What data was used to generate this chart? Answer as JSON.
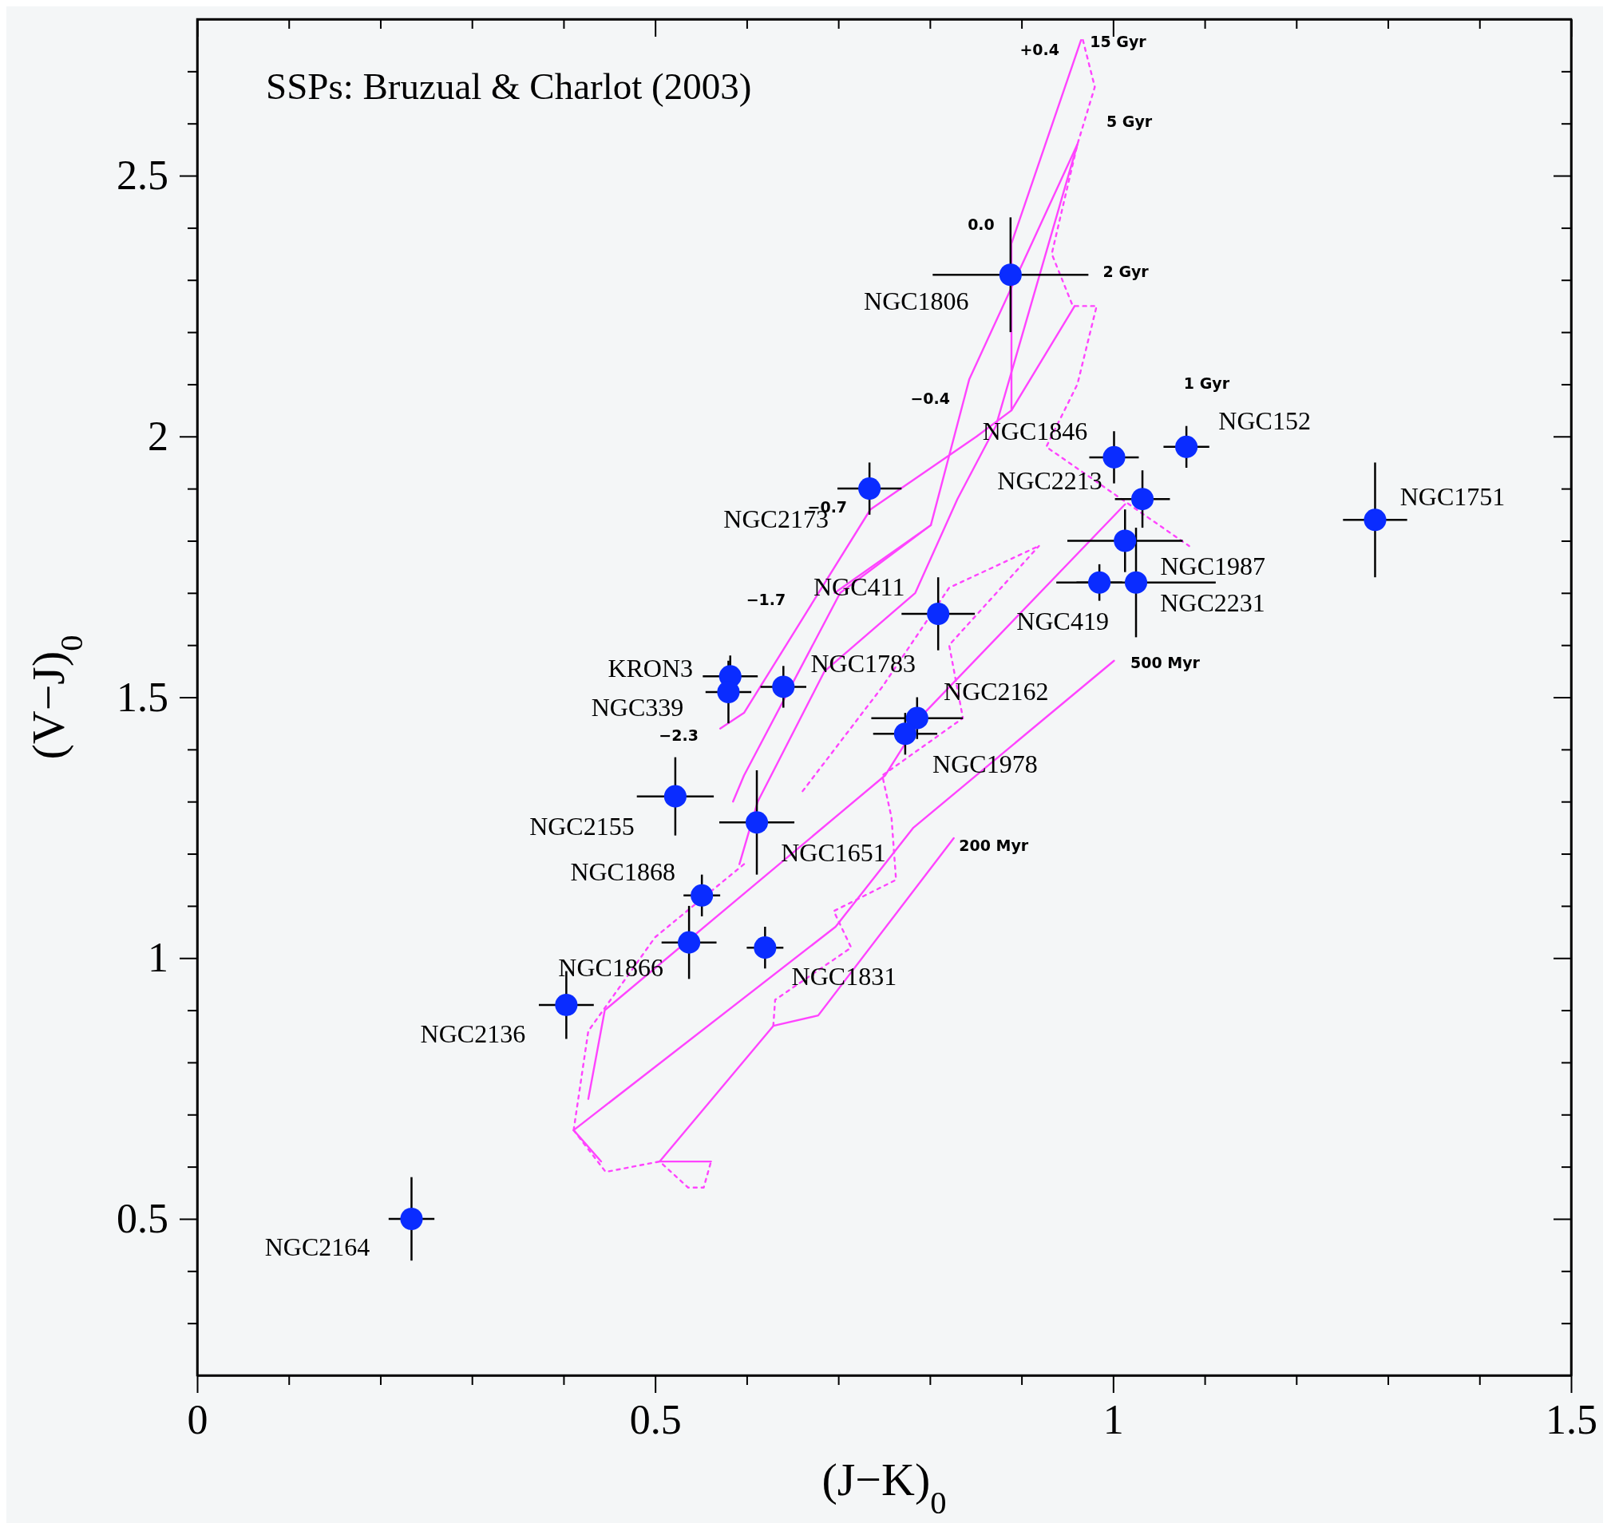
{
  "chart_data": {
    "type": "scatter",
    "title": "SSPs: Bruzual & Charlot (2003)",
    "xlabel": "(J−K)$_{0}$",
    "ylabel": "(V−J)$_{0}$",
    "xlim": [
      0,
      1.5
    ],
    "ylim": [
      0.2,
      2.8
    ],
    "xticks": [
      0,
      {
        "value": 0.1,
        "label": null
      },
      {
        "value": 0.2,
        "label": null
      },
      {
        "value": 0.3,
        "label": null
      },
      {
        "value": 0.4,
        "label": null
      },
      0.5,
      {
        "value": 0.6,
        "label": null
      },
      {
        "value": 0.7,
        "label": null
      },
      {
        "value": 0.8,
        "label": null
      },
      {
        "value": 0.9,
        "label": null
      },
      1,
      {
        "value": 1.1,
        "label": null
      },
      {
        "value": 1.2,
        "label": null
      },
      {
        "value": 1.3,
        "label": null
      },
      {
        "value": 1.4,
        "label": null
      },
      1.5
    ],
    "yticks": [
      {
        "value": 0.3,
        "label": null
      },
      {
        "value": 0.4,
        "label": null
      },
      0.5,
      {
        "value": 0.6,
        "label": null
      },
      {
        "value": 0.7,
        "label": null
      },
      {
        "value": 0.8,
        "label": null
      },
      {
        "value": 0.9,
        "label": null
      },
      1,
      {
        "value": 1.1,
        "label": null
      },
      {
        "value": 1.2,
        "label": null
      },
      {
        "value": 1.3,
        "label": null
      },
      {
        "value": 1.4,
        "label": null
      },
      1.5,
      {
        "value": 1.6,
        "label": null
      },
      {
        "value": 1.7,
        "label": null
      },
      {
        "value": 1.8,
        "label": null
      },
      {
        "value": 1.9,
        "label": null
      },
      2,
      {
        "value": 2.1,
        "label": null
      },
      {
        "value": 2.2,
        "label": null
      },
      {
        "value": 2.3,
        "label": null
      },
      {
        "value": 2.4,
        "label": null
      },
      2.5,
      {
        "value": 2.6,
        "label": null
      },
      {
        "value": 2.7,
        "label": null
      }
    ],
    "series": [
      {
        "color": "#0a2cff",
        "marker": "circle",
        "x": [
          0.888,
          1.001,
          1.08,
          1.286,
          1.032,
          1.013,
          1.025,
          0.985,
          0.734,
          0.809,
          0.64,
          0.582,
          0.58,
          0.786,
          0.773,
          0.522,
          0.611,
          0.551,
          0.537,
          0.62,
          0.403,
          0.234
        ],
        "values": [
          2.31,
          1.96,
          1.98,
          1.84,
          1.88,
          1.8,
          1.72,
          1.72,
          1.9,
          1.66,
          1.52,
          1.54,
          1.51,
          1.46,
          1.43,
          1.31,
          1.26,
          1.12,
          1.03,
          1.02,
          0.91,
          0.5
        ],
        "errors": [
          0.11,
          0.05,
          0.04,
          0.11,
          0.055,
          0.06,
          0.105,
          0.035,
          0.05,
          0.07,
          0.04,
          0.04,
          0.06,
          0.04,
          0.04,
          0.075,
          0.1,
          0.04,
          0.07,
          0.04,
          0.065,
          0.08
        ],
        "xerrors": [
          0.085,
          0.027,
          0.025,
          0.035,
          0.03,
          0.063,
          0.087,
          0.025,
          0.035,
          0.04,
          0.025,
          0.03,
          0.025,
          0.05,
          0.035,
          0.042,
          0.041,
          0.02,
          0.03,
          0.02,
          0.03,
          0.025
        ]
      },
      {
        "type": "line",
        "color": "#ff44ff",
        "line_style": "solid",
        "x": [
          0.561,
          0.505,
          0.629,
          0.678,
          0.826
        ],
        "values": [
          0.61,
          0.61,
          0.87,
          0.89,
          1.23
        ]
      },
      {
        "type": "line",
        "color": "#ff44ff",
        "line_style": "solid",
        "x": [
          0.441,
          0.411,
          0.697,
          0.782,
          1.001
        ],
        "values": [
          0.61,
          0.67,
          1.06,
          1.25,
          1.57
        ]
      },
      {
        "type": "line",
        "color": "#ff44ff",
        "line_style": "solid",
        "x": [
          0.427,
          0.445,
          0.751,
          0.794,
          1.013
        ],
        "values": [
          0.73,
          0.9,
          1.35,
          1.47,
          1.87
        ]
      },
      {
        "type": "line",
        "color": "#ff44ff",
        "line_style": "solid",
        "x": [
          0.571,
          0.597,
          0.735,
          0.851,
          0.889,
          0.958
        ],
        "values": [
          1.44,
          1.47,
          1.86,
          2.0,
          2.05,
          2.25
        ]
      },
      {
        "type": "line",
        "color": "#ff44ff",
        "line_style": "solid",
        "x": [
          0.889,
          0.889,
          0.965
        ],
        "values": [
          2.05,
          2.37,
          2.76
        ]
      },
      {
        "type": "line",
        "color": "#ff44ff",
        "line_style": "solid",
        "x": [
          0.585,
          0.597,
          0.702,
          0.801,
          0.843,
          0.961
        ],
        "values": [
          1.3,
          1.35,
          1.7,
          1.83,
          2.11,
          2.56
        ]
      },
      {
        "type": "line",
        "color": "#ff44ff",
        "line_style": "solid",
        "x": [
          0.592,
          0.612,
          0.685,
          0.784,
          0.83,
          0.872,
          0.961
        ],
        "values": [
          1.18,
          1.3,
          1.55,
          1.7,
          1.88,
          2.02,
          2.56
        ]
      },
      {
        "type": "line",
        "color": "#ff44ff",
        "line_style": "solid",
        "x": [
          0.696,
          0.801
        ],
        "values": [
          1.7,
          1.83
        ]
      },
      {
        "type": "line",
        "color": "#ff44ff",
        "line_style": "dotted",
        "x": [
          0.967,
          0.98,
          0.961,
          0.933,
          0.956,
          0.982,
          0.961,
          0.927,
          1.083
        ],
        "values": [
          2.76,
          2.67,
          2.56,
          2.35,
          2.25,
          2.25,
          2.1,
          1.98,
          1.79
        ]
      },
      {
        "type": "line",
        "color": "#ff44ff",
        "line_style": "dotted",
        "x": [
          0.411,
          0.446,
          0.505,
          0.536,
          0.553,
          0.561
        ],
        "values": [
          0.67,
          0.59,
          0.61,
          0.56,
          0.56,
          0.61
        ]
      },
      {
        "type": "line",
        "color": "#ff44ff",
        "line_style": "dotted",
        "x": [
          0.411,
          0.427,
          0.5,
          0.597
        ],
        "values": [
          0.67,
          0.86,
          1.04,
          1.18
        ]
      },
      {
        "type": "line",
        "color": "#ff44ff",
        "line_style": "dotted",
        "x": [
          0.629,
          0.631,
          0.714,
          0.695,
          0.763,
          0.758,
          0.748,
          0.836,
          0.821,
          0.919
        ],
        "values": [
          0.87,
          0.92,
          1.02,
          1.09,
          1.15,
          1.27,
          1.35,
          1.46,
          1.6,
          1.79
        ]
      },
      {
        "type": "line",
        "color": "#ff44ff",
        "line_style": "dotted",
        "x": [
          0.661,
          0.748,
          0.821,
          0.919
        ],
        "values": [
          1.32,
          1.52,
          1.71,
          1.79
        ]
      }
    ],
    "annotations": [
      {
        "text": "NGC1806",
        "x": 0.888,
        "y": 2.31
      },
      {
        "text": "NGC1846",
        "x": 1.001,
        "y": 1.96
      },
      {
        "text": "NGC152",
        "x": 1.08,
        "y": 1.98
      },
      {
        "text": "NGC1751",
        "x": 1.286,
        "y": 1.84
      },
      {
        "text": "NGC2213",
        "x": 1.032,
        "y": 1.88
      },
      {
        "text": "NGC1987",
        "x": 1.013,
        "y": 1.8
      },
      {
        "text": "NGC2231",
        "x": 1.025,
        "y": 1.72
      },
      {
        "text": "NGC419",
        "x": 0.985,
        "y": 1.72
      },
      {
        "text": "NGC2173",
        "x": 0.734,
        "y": 1.9
      },
      {
        "text": "NGC411",
        "x": 0.809,
        "y": 1.66
      },
      {
        "text": "NGC1783",
        "x": 0.64,
        "y": 1.52
      },
      {
        "text": "KRON3",
        "x": 0.582,
        "y": 1.54
      },
      {
        "text": "NGC339",
        "x": 0.58,
        "y": 1.51
      },
      {
        "text": "NGC2162",
        "x": 0.786,
        "y": 1.46
      },
      {
        "text": "NGC1978",
        "x": 0.773,
        "y": 1.43
      },
      {
        "text": "NGC2155",
        "x": 0.522,
        "y": 1.31
      },
      {
        "text": "NGC1651",
        "x": 0.611,
        "y": 1.26
      },
      {
        "text": "NGC1868",
        "x": 0.551,
        "y": 1.12
      },
      {
        "text": "NGC1866",
        "x": 0.537,
        "y": 1.03
      },
      {
        "text": "NGC1831",
        "x": 0.62,
        "y": 1.02
      },
      {
        "text": "NGC2136",
        "x": 0.403,
        "y": 0.91
      },
      {
        "text": "NGC2164",
        "x": 0.234,
        "y": 0.5
      },
      {
        "text": "+0.4",
        "x": 0.965,
        "y": 2.76
      },
      {
        "text": "15 Gyr",
        "x": 0.967,
        "y": 2.76
      },
      {
        "text": "5 Gyr",
        "x": 0.961,
        "y": 2.56
      },
      {
        "text": "0.0",
        "x": 0.889,
        "y": 2.37
      },
      {
        "text": "2 Gyr",
        "x": 0.958,
        "y": 2.25
      },
      {
        "text": "−0.4",
        "x": 0.843,
        "y": 2.11
      },
      "1 Gyr",
      {
        "text": "−0.7",
        "x": 0.735,
        "y": 1.86
      },
      "−1.7",
      {
        "text": "−2.3",
        "x": 0.571,
        "y": 1.44
      },
      {
        "text": "500 Myr",
        "x": 1.001,
        "y": 1.57
      },
      {
        "text": "200 Myr",
        "x": 0.826,
        "y": 1.23
      }
    ]
  }
}
